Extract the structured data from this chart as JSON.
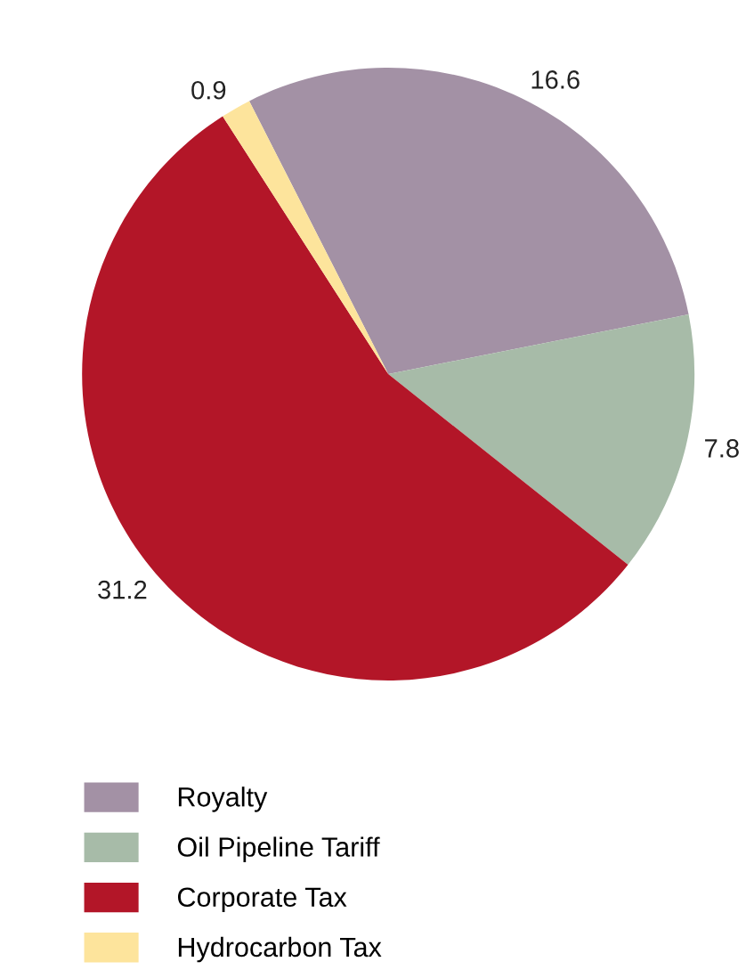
{
  "chart_data": {
    "type": "pie",
    "categories": [
      "Royalty",
      "Oil Pipeline Tariff",
      "Corporate Tax",
      "Hydrocarbon Tax"
    ],
    "values": [
      16.6,
      7.8,
      31.2,
      0.9
    ],
    "colors": [
      "#a391a5",
      "#a7bba8",
      "#b31628",
      "#fde49c"
    ],
    "data_labels": true,
    "legend": "bottom left"
  }
}
